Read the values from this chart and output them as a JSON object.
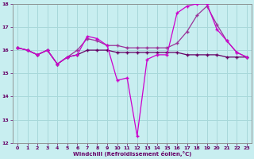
{
  "x": [
    0,
    1,
    2,
    3,
    4,
    5,
    6,
    7,
    8,
    9,
    10,
    11,
    12,
    13,
    14,
    15,
    16,
    17,
    18,
    19,
    20,
    21,
    22,
    23
  ],
  "line1": [
    16.1,
    16.0,
    15.8,
    16.0,
    15.4,
    15.7,
    15.8,
    16.0,
    16.0,
    16.0,
    15.9,
    15.9,
    15.9,
    15.9,
    15.9,
    15.9,
    15.9,
    15.8,
    15.8,
    15.8,
    15.8,
    15.7,
    15.7,
    15.7
  ],
  "line2": [
    16.1,
    16.0,
    15.8,
    16.0,
    15.4,
    15.7,
    15.8,
    16.6,
    16.5,
    16.2,
    14.7,
    14.8,
    12.3,
    15.6,
    15.8,
    15.8,
    17.6,
    17.9,
    18.0,
    18.0,
    16.9,
    16.4,
    15.9,
    15.7
  ],
  "line3": [
    16.1,
    16.0,
    15.8,
    16.0,
    15.4,
    15.7,
    16.0,
    16.5,
    16.4,
    16.2,
    16.2,
    16.1,
    16.1,
    16.1,
    16.1,
    16.1,
    16.3,
    16.8,
    17.5,
    17.9,
    17.1,
    16.4,
    15.9,
    15.7
  ],
  "color1": "#660066",
  "color2": "#cc00cc",
  "color3": "#993399",
  "background": "#c8eef0",
  "grid_color": "#a8d8da",
  "xlabel": "Windchill (Refroidissement éolien,°C)",
  "ylim": [
    12,
    18
  ],
  "xlim": [
    -0.5,
    23.5
  ],
  "yticks": [
    12,
    13,
    14,
    15,
    16,
    17,
    18
  ],
  "xticks": [
    0,
    1,
    2,
    3,
    4,
    5,
    6,
    7,
    8,
    9,
    10,
    11,
    12,
    13,
    14,
    15,
    16,
    17,
    18,
    19,
    20,
    21,
    22,
    23
  ]
}
